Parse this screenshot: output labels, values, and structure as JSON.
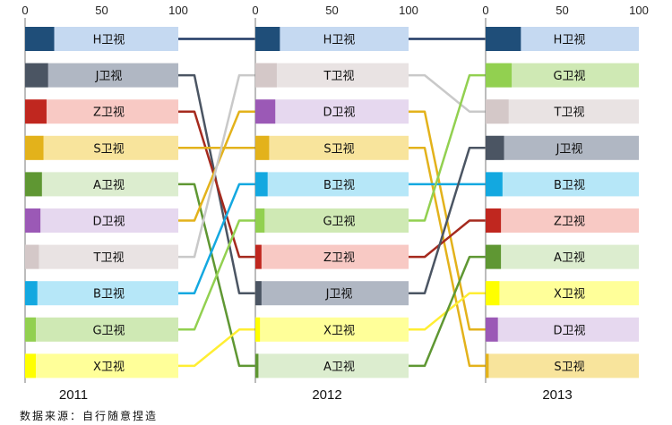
{
  "chart_data": {
    "type": "bar",
    "layout": "ranked-horizontal-bars-with-connectors",
    "xlim": [
      0,
      100
    ],
    "ticks": [
      0,
      50,
      100
    ],
    "years": [
      {
        "label": "2011",
        "items": [
          {
            "name": "H卫视",
            "value": 19
          },
          {
            "name": "J卫视",
            "value": 15
          },
          {
            "name": "Z卫视",
            "value": 14
          },
          {
            "name": "S卫视",
            "value": 12
          },
          {
            "name": "A卫视",
            "value": 11
          },
          {
            "name": "D卫视",
            "value": 10
          },
          {
            "name": "T卫视",
            "value": 9
          },
          {
            "name": "B卫视",
            "value": 8
          },
          {
            "name": "G卫视",
            "value": 7
          },
          {
            "name": "X卫视",
            "value": 7
          }
        ]
      },
      {
        "label": "2012",
        "items": [
          {
            "name": "H卫视",
            "value": 16
          },
          {
            "name": "T卫视",
            "value": 14
          },
          {
            "name": "D卫视",
            "value": 13
          },
          {
            "name": "S卫视",
            "value": 9
          },
          {
            "name": "B卫视",
            "value": 8
          },
          {
            "name": "G卫视",
            "value": 6
          },
          {
            "name": "Z卫视",
            "value": 4
          },
          {
            "name": "J卫视",
            "value": 4
          },
          {
            "name": "X卫视",
            "value": 3
          },
          {
            "name": "A卫视",
            "value": 2
          }
        ]
      },
      {
        "label": "2013",
        "items": [
          {
            "name": "H卫视",
            "value": 23
          },
          {
            "name": "G卫视",
            "value": 17
          },
          {
            "name": "T卫视",
            "value": 15
          },
          {
            "name": "J卫视",
            "value": 12
          },
          {
            "name": "B卫视",
            "value": 11
          },
          {
            "name": "Z卫视",
            "value": 10
          },
          {
            "name": "A卫视",
            "value": 10
          },
          {
            "name": "X卫视",
            "value": 9
          },
          {
            "name": "D卫视",
            "value": 8
          },
          {
            "name": "S卫视",
            "value": 2
          }
        ]
      }
    ],
    "colors": {
      "H卫视": {
        "dark": "#1f4e79",
        "light": "#c5d9f1",
        "line": "#1f3864"
      },
      "J卫视": {
        "dark": "#4b5563",
        "light": "#b0b7c3",
        "line": "#4b5563"
      },
      "Z卫视": {
        "dark": "#c0271f",
        "light": "#f8c9c4",
        "line": "#a52a1e"
      },
      "S卫视": {
        "dark": "#e3b21b",
        "light": "#f8e49c",
        "line": "#e3b21b"
      },
      "A卫视": {
        "dark": "#5f9733",
        "light": "#dcedcf",
        "line": "#5f9733"
      },
      "D卫视": {
        "dark": "#9b59b6",
        "light": "#e6d8ef",
        "line": "#e3b21b"
      },
      "T卫视": {
        "dark": "#d4c8c8",
        "light": "#e9e3e3",
        "line": "#c9c9c9"
      },
      "B卫视": {
        "dark": "#13a8e0",
        "light": "#b6e7f8",
        "line": "#13a8e0"
      },
      "G卫视": {
        "dark": "#92d050",
        "light": "#cfe9b4",
        "line": "#92d050"
      },
      "X卫视": {
        "dark": "#ffff00",
        "light": "#ffff99",
        "line": "#ffee33"
      }
    },
    "source_note": "数据来源：自行随意捏造"
  }
}
